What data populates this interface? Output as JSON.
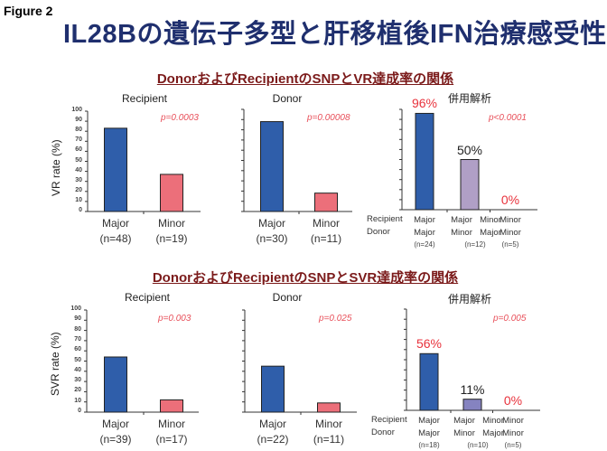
{
  "figure_label": "Figure 2",
  "title": "IL28Bの遺伝子多型と肝移植後IFN治療感受性",
  "colors": {
    "major": "#2f5eaa",
    "minor": "#ec6f7a",
    "mixed_vr": "#b09fc6",
    "mixed_svr": "#8583c0",
    "highlight": "#e8323c",
    "neutral": "#222222"
  },
  "row_labels": {
    "recipient": "Recipient",
    "donor": "Donor"
  },
  "chart_data": [
    {
      "panel": "Top",
      "heading": "DonorおよびRecipientのSNPとVR達成率の関係",
      "type": "bar",
      "title": "Recipient",
      "ylabel": "VR rate (%)",
      "ylim": [
        0,
        100
      ],
      "yticks": [
        0,
        10,
        20,
        30,
        40,
        50,
        60,
        70,
        80,
        90,
        100
      ],
      "p_value": "p=0.0003",
      "categories": [
        "Major",
        "Minor"
      ],
      "n": [
        "(n=48)",
        "(n=19)"
      ],
      "values": [
        83,
        37
      ]
    },
    {
      "panel": "Top",
      "type": "bar",
      "title": "Donor",
      "ylim": [
        0,
        100
      ],
      "p_value": "p=0.00008",
      "categories": [
        "Major",
        "Minor"
      ],
      "n": [
        "(n=30)",
        "(n=11)"
      ],
      "values": [
        88,
        18
      ]
    },
    {
      "panel": "Top",
      "type": "bar",
      "title": "併用解析",
      "ylim": [
        0,
        100
      ],
      "p_value": "p<0.0001",
      "categories": [
        {
          "recipient": "Major",
          "donor": "Major"
        },
        {
          "recipient": "Major / Minor",
          "donor": "Minor / Major"
        },
        {
          "recipient": "Minor",
          "donor": "Minor"
        }
      ],
      "n": [
        "(n=24)",
        "(n=12)",
        "(n=5)"
      ],
      "values": [
        96,
        50,
        0
      ],
      "value_labels": [
        "96%",
        "50%",
        "0%"
      ]
    },
    {
      "panel": "Bottom",
      "heading": "DonorおよびRecipientのSNPとSVR達成率の関係",
      "type": "bar",
      "title": "Recipient",
      "ylabel": "SVR rate (%)",
      "ylim": [
        0,
        100
      ],
      "yticks": [
        0,
        10,
        20,
        30,
        40,
        50,
        60,
        70,
        80,
        90,
        100
      ],
      "p_value": "p=0.003",
      "categories": [
        "Major",
        "Minor"
      ],
      "n": [
        "(n=39)",
        "(n=17)"
      ],
      "values": [
        54,
        12
      ]
    },
    {
      "panel": "Bottom",
      "type": "bar",
      "title": "Donor",
      "ylim": [
        0,
        100
      ],
      "p_value": "p=0.025",
      "categories": [
        "Major",
        "Minor"
      ],
      "n": [
        "(n=22)",
        "(n=11)"
      ],
      "values": [
        45,
        9
      ]
    },
    {
      "panel": "Bottom",
      "type": "bar",
      "title": "併用解析",
      "ylim": [
        0,
        100
      ],
      "p_value": "p=0.005",
      "categories": [
        {
          "recipient": "Major",
          "donor": "Major"
        },
        {
          "recipient": "Major / Minor",
          "donor": "Minor / Major"
        },
        {
          "recipient": "Minor",
          "donor": "Minor"
        }
      ],
      "n": [
        "(n=18)",
        "(n=10)",
        "(n=5)"
      ],
      "values": [
        56,
        11,
        0
      ],
      "value_labels": [
        "56%",
        "11%",
        "0%"
      ]
    }
  ]
}
